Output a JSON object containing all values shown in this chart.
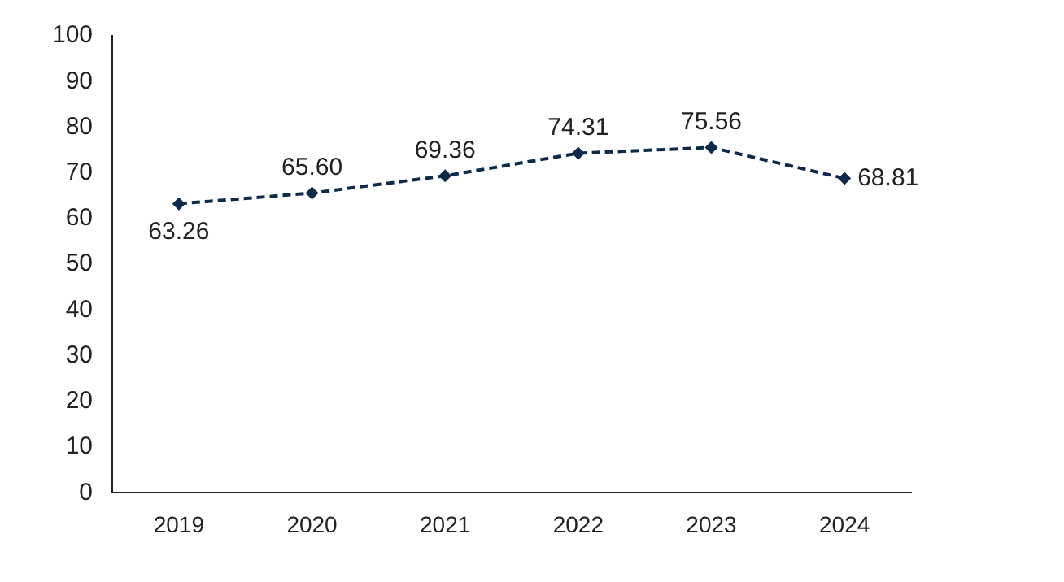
{
  "chart_data": {
    "type": "line",
    "categories": [
      "2019",
      "2020",
      "2021",
      "2022",
      "2023",
      "2024"
    ],
    "series": [
      {
        "color": "#0d2a4a",
        "values": [
          63.26,
          65.6,
          69.36,
          74.31,
          75.56,
          68.81
        ]
      }
    ],
    "value_labels": [
      "63.26",
      "65.60",
      "69.36",
      "74.31",
      "75.56",
      "68.81"
    ],
    "ylim": [
      0,
      100
    ],
    "yticks": [
      0,
      10,
      20,
      30,
      40,
      50,
      60,
      70,
      80,
      90,
      100
    ],
    "grid": false,
    "legend": false,
    "marker": "diamond",
    "line_style": "dashed"
  }
}
